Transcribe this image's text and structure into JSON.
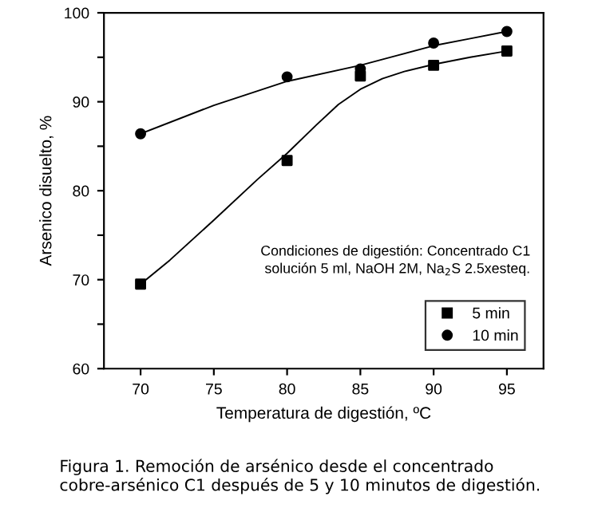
{
  "chart_data": {
    "type": "scatter",
    "xlabel": "Temperatura de digestión, ºC",
    "ylabel": "Arsenico disuelto, %",
    "xlim": [
      67.5,
      97.5
    ],
    "xticks": [
      70,
      75,
      80,
      85,
      90,
      95
    ],
    "ylim": [
      60,
      100
    ],
    "yticks": [
      60,
      {
        "value": 65,
        "label": null
      },
      70,
      {
        "value": 75,
        "label": null
      },
      80,
      {
        "value": 85,
        "label": null
      },
      90,
      {
        "value": 95,
        "label": null
      },
      100
    ],
    "legend": "bottom right",
    "grid": false,
    "series": [
      {
        "name": "5 min",
        "color": "#000000",
        "marker": "square",
        "x": [
          70,
          80,
          85,
          90,
          95
        ],
        "values": [
          69.5,
          83.4,
          92.9,
          94.1,
          95.7
        ]
      },
      {
        "name": "10 min",
        "color": "#000000",
        "marker": "circle",
        "x": [
          70,
          80,
          85,
          90,
          95
        ],
        "values": [
          86.4,
          92.8,
          93.7,
          96.6,
          97.9
        ]
      },
      {
        "type": "line",
        "color": "#000000",
        "marker": "none",
        "x": [
          70,
          72,
          75,
          78,
          80,
          82,
          83.5,
          85,
          86.5,
          88,
          90,
          92.5,
          95
        ],
        "values": [
          69.5,
          72.2,
          76.7,
          81.3,
          84.2,
          87.4,
          89.7,
          91.4,
          92.6,
          93.4,
          94.2,
          95.0,
          95.7
        ]
      },
      {
        "type": "line",
        "color": "#000000",
        "marker": "none",
        "x": [
          70,
          75,
          80,
          85,
          87.5,
          90,
          92.5,
          95
        ],
        "values": [
          86.4,
          89.6,
          92.3,
          94.1,
          95.2,
          96.3,
          97.1,
          97.9
        ]
      }
    ],
    "annotations": [
      "Condiciones de digestión: Concentrado C1\nsolución 5 ml, NaOH 2M, Na$_{2}$S 2.5xesteq.",
      "Figura 1. Remoción de arsénico desde el concentrado cobre-arsénico C1 después de 5 y 10 minutos de digestión."
    ]
  }
}
